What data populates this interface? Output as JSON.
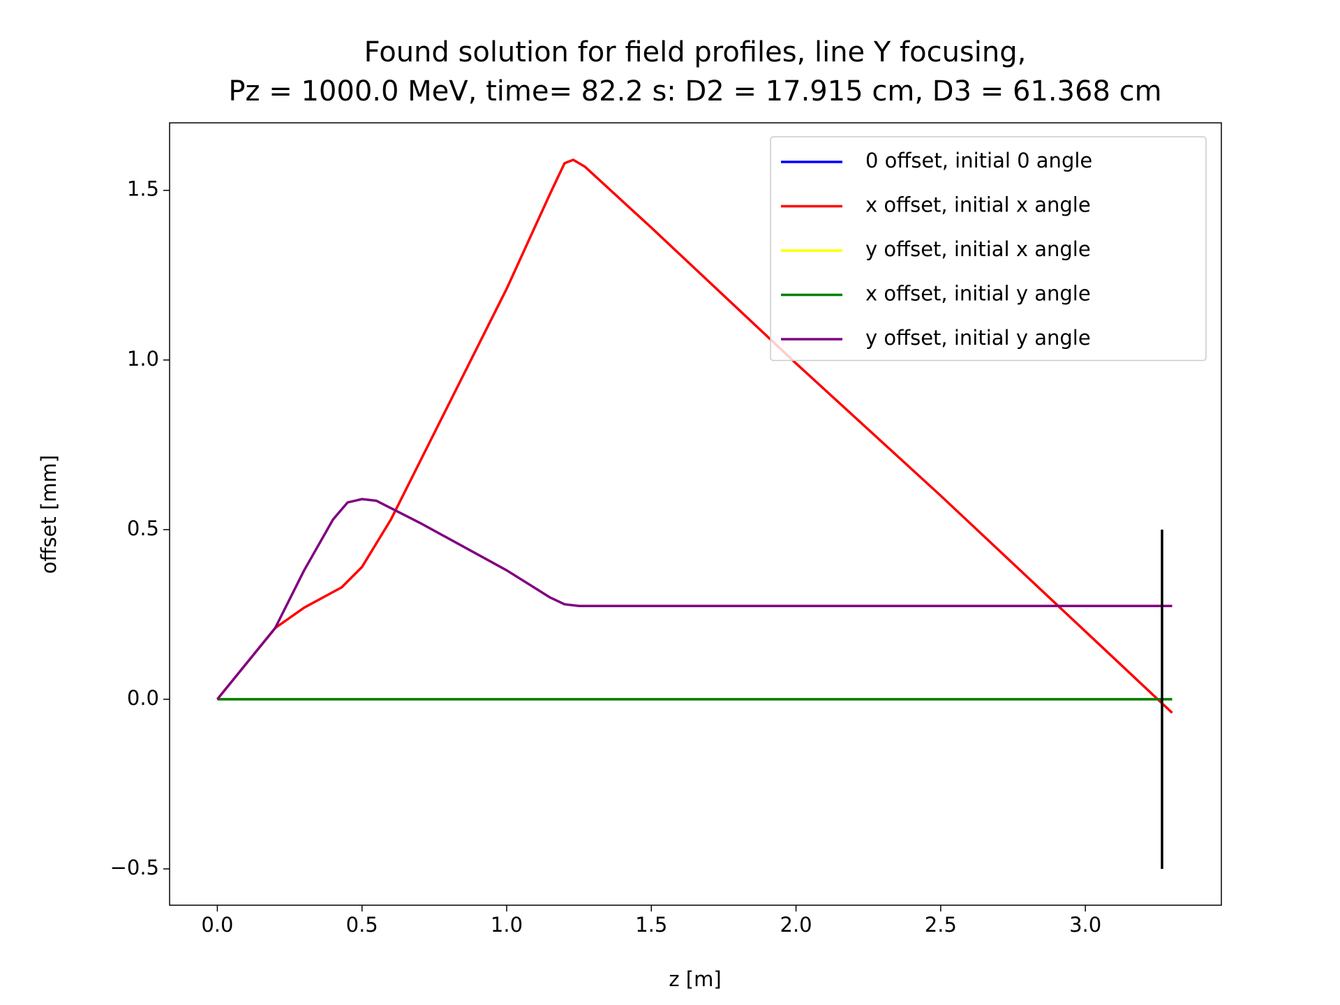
{
  "chart_data": {
    "type": "line",
    "title": [
      "Found solution for field profiles, line Y focusing,",
      "Pz = 1000.0 MeV, time= 82.2 s: D2 = 17.915 cm, D3 = 61.368 cm"
    ],
    "xlabel": "z [m]",
    "ylabel": "offset [mm]",
    "xlim": [
      -0.165,
      3.47
    ],
    "ylim": [
      -0.607,
      1.699
    ],
    "xticks": [
      {
        "value": 0,
        "label": "0.0"
      },
      {
        "value": 0.5,
        "label": "0.5"
      },
      {
        "value": 1,
        "label": "1.0"
      },
      {
        "value": 1.5,
        "label": "1.5"
      },
      {
        "value": 2,
        "label": "2.0"
      },
      {
        "value": 2.5,
        "label": "2.5"
      },
      {
        "value": 3,
        "label": "3.0"
      }
    ],
    "yticks": [
      {
        "value": -0.5,
        "label": "−0.5"
      },
      {
        "value": 0,
        "label": "0.0"
      },
      {
        "value": 0.5,
        "label": "0.5"
      },
      {
        "value": 1,
        "label": "1.0"
      },
      {
        "value": 1.5,
        "label": "1.5"
      }
    ],
    "legend": "upper right",
    "series": [
      {
        "name": "0 offset, initial 0 angle",
        "color": "#0000ff",
        "x": [
          0,
          3.3
        ],
        "values": [
          0,
          0
        ]
      },
      {
        "name": "x offset, initial x angle",
        "color": "#ff0000",
        "x": [
          0,
          0.2,
          0.3,
          0.43,
          0.5,
          0.6,
          0.8,
          1.0,
          1.15,
          1.2,
          1.23,
          1.27,
          1.5,
          2.0,
          2.5,
          3.0,
          3.3
        ],
        "values": [
          0,
          0.21,
          0.27,
          0.33,
          0.39,
          0.53,
          0.87,
          1.21,
          1.49,
          1.58,
          1.59,
          1.57,
          1.39,
          0.99,
          0.6,
          0.2,
          -0.04
        ]
      },
      {
        "name": "y offset, initial x angle",
        "color": "#ffff00",
        "x": [
          0,
          3.3
        ],
        "values": [
          0,
          0
        ]
      },
      {
        "name": "x offset, initial y angle",
        "color": "#008000",
        "x": [
          0,
          3.3
        ],
        "values": [
          0,
          0
        ]
      },
      {
        "name": "y offset, initial y angle",
        "color": "#800080",
        "x": [
          0,
          0.2,
          0.3,
          0.4,
          0.45,
          0.5,
          0.55,
          0.7,
          1.0,
          1.15,
          1.2,
          1.25,
          3.3
        ],
        "values": [
          0,
          0.21,
          0.38,
          0.53,
          0.58,
          0.59,
          0.585,
          0.52,
          0.38,
          0.3,
          0.28,
          0.275,
          0.275
        ]
      }
    ],
    "vlines": [
      {
        "x": 3.265,
        "ymin": -0.5,
        "ymax": 0.5,
        "color": "#000000"
      }
    ]
  }
}
